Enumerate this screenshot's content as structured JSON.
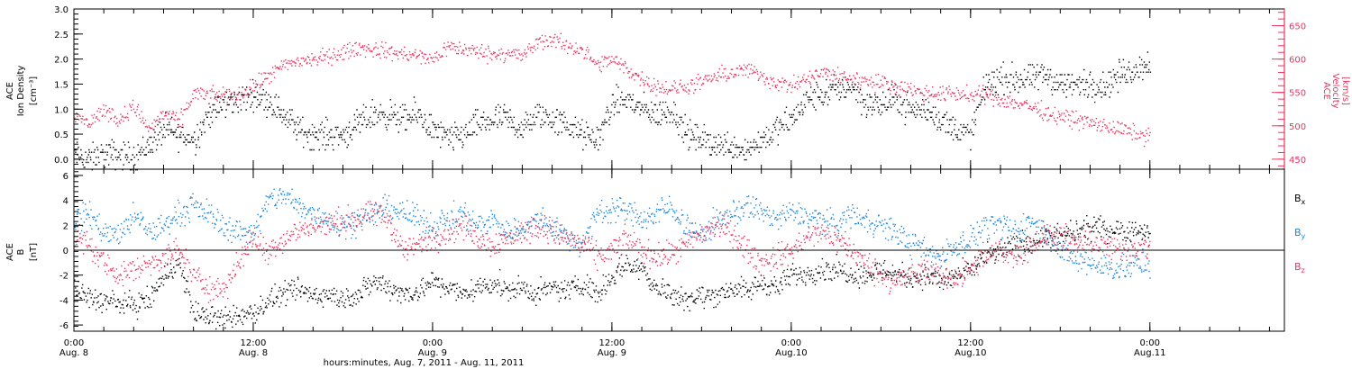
{
  "colors": {
    "axis": "#000000",
    "bx": "#000000",
    "by": "#1e86d8",
    "bz": "#e8355f",
    "density": "#000000",
    "velocity": "#e8355f"
  },
  "time_axis": {
    "title": "hours:minutes, Aug.  7, 2011 - Aug. 11, 2011",
    "range_hours": [
      0,
      81
    ],
    "ticks": [
      {
        "t": 0,
        "time": "0:00",
        "date": "Aug. 8"
      },
      {
        "t": 12,
        "time": "12:00",
        "date": "Aug. 8"
      },
      {
        "t": 24,
        "time": "0:00",
        "date": "Aug. 9"
      },
      {
        "t": 36,
        "time": "12:00",
        "date": "Aug. 9"
      },
      {
        "t": 48,
        "time": "0:00",
        "date": "Aug.10"
      },
      {
        "t": 60,
        "time": "12:00",
        "date": "Aug.10"
      },
      {
        "t": 72,
        "time": "0:00",
        "date": "Aug.11"
      }
    ]
  },
  "chart_data": [
    {
      "type": "scatter",
      "panel": "solar-wind",
      "left_axis": {
        "label_lines": [
          "ACE",
          "Ion Density"
        ],
        "unit": "[cm⁻³]",
        "ylim": [
          -0.2,
          3.0
        ],
        "ticks": [
          "0.0",
          "0.5",
          "1.0",
          "1.5",
          "2.0",
          "2.5",
          "3.0"
        ]
      },
      "right_axis": {
        "label_lines": [
          "ACE",
          "Velocity"
        ],
        "unit": "[km/s]",
        "ylim": [
          435,
          675
        ],
        "ticks": [
          "450",
          "500",
          "550",
          "600",
          "650"
        ]
      },
      "series": [
        {
          "axis": "left",
          "color": "#000000",
          "x": [
            0,
            1,
            2,
            3,
            4,
            5,
            6,
            7,
            8,
            9,
            10,
            11,
            12,
            13,
            14,
            15,
            16,
            17,
            18,
            19,
            20,
            21,
            22,
            23,
            24,
            25,
            26,
            27,
            28,
            29,
            30,
            31,
            32,
            33,
            34,
            35,
            36,
            37,
            38,
            39,
            40,
            41,
            42,
            43,
            44,
            45,
            46,
            47,
            48,
            49,
            50,
            51,
            52,
            53,
            54,
            55,
            56,
            57,
            58,
            59,
            60,
            61,
            62,
            63,
            64,
            65,
            66,
            67,
            68,
            69,
            70,
            71,
            72
          ],
          "y": [
            0.1,
            0.0,
            0.1,
            0.1,
            0.05,
            0.3,
            0.6,
            0.5,
            0.4,
            0.9,
            1.1,
            1.2,
            1.3,
            1.2,
            0.9,
            0.6,
            0.5,
            0.5,
            0.5,
            0.7,
            0.9,
            0.9,
            0.8,
            0.9,
            0.6,
            0.4,
            0.5,
            0.7,
            0.8,
            0.8,
            0.6,
            0.9,
            0.8,
            0.7,
            0.5,
            0.4,
            1.1,
            1.2,
            1.0,
            0.9,
            1.0,
            0.5,
            0.4,
            0.3,
            0.3,
            0.2,
            0.4,
            0.6,
            0.8,
            1.2,
            1.3,
            1.4,
            1.5,
            1.1,
            1.1,
            1.2,
            1.0,
            1.0,
            0.8,
            0.6,
            0.5,
            1.5,
            1.6,
            1.6,
            1.6,
            1.7,
            1.5,
            1.5,
            1.5,
            1.5,
            1.7,
            1.8,
            2.0
          ]
        },
        {
          "axis": "right",
          "color": "#e8355f",
          "x": [
            0,
            1,
            2,
            3,
            4,
            5,
            6,
            7,
            8,
            9,
            10,
            11,
            12,
            13,
            14,
            15,
            16,
            17,
            18,
            19,
            20,
            21,
            22,
            23,
            24,
            25,
            26,
            27,
            28,
            29,
            30,
            31,
            32,
            33,
            34,
            35,
            36,
            37,
            38,
            39,
            40,
            41,
            42,
            43,
            44,
            45,
            46,
            47,
            48,
            49,
            50,
            51,
            52,
            53,
            54,
            55,
            56,
            57,
            58,
            59,
            60,
            61,
            62,
            63,
            64,
            65,
            66,
            67,
            68,
            69,
            70,
            71,
            72
          ],
          "y": [
            515,
            505,
            525,
            510,
            530,
            495,
            520,
            505,
            550,
            545,
            548,
            545,
            560,
            575,
            590,
            598,
            600,
            605,
            610,
            618,
            615,
            612,
            608,
            605,
            600,
            620,
            615,
            612,
            608,
            610,
            605,
            625,
            630,
            620,
            615,
            590,
            600,
            585,
            570,
            560,
            555,
            560,
            565,
            575,
            580,
            585,
            575,
            565,
            560,
            570,
            580,
            575,
            572,
            568,
            565,
            560,
            555,
            550,
            548,
            550,
            545,
            548,
            540,
            535,
            530,
            520,
            515,
            510,
            505,
            500,
            495,
            490,
            485
          ]
        }
      ]
    },
    {
      "type": "scatter",
      "panel": "magnetic-field",
      "left_axis": {
        "label_lines": [
          "ACE",
          "B"
        ],
        "unit": "[nT]",
        "ylim": [
          -6.5,
          6.5
        ],
        "ticks": [
          "-6",
          "-4",
          "-2",
          "0",
          "2",
          "4",
          "6"
        ]
      },
      "series": [
        {
          "name": "Bx",
          "color": "#000000",
          "x": [
            0,
            1,
            2,
            3,
            4,
            5,
            6,
            7,
            8,
            9,
            10,
            11,
            12,
            13,
            14,
            15,
            16,
            17,
            18,
            19,
            20,
            21,
            22,
            23,
            24,
            25,
            26,
            27,
            28,
            29,
            30,
            31,
            32,
            33,
            34,
            35,
            36,
            37,
            38,
            39,
            40,
            41,
            42,
            43,
            44,
            45,
            46,
            47,
            48,
            49,
            50,
            51,
            52,
            53,
            54,
            55,
            56,
            57,
            58,
            59,
            60,
            61,
            62,
            63,
            64,
            65,
            66,
            67,
            68,
            69,
            70,
            71,
            72
          ],
          "y": [
            -3,
            -3.8,
            -4,
            -4.2,
            -4.3,
            -4,
            -2,
            -1,
            -5,
            -5.3,
            -5.5,
            -5.2,
            -5,
            -4,
            -3.5,
            -3.2,
            -3.5,
            -3.6,
            -3.8,
            -3.5,
            -2.5,
            -2.8,
            -3.5,
            -3.2,
            -2.5,
            -3,
            -3.5,
            -3,
            -2.5,
            -3.2,
            -3,
            -3.5,
            -3,
            -3.2,
            -2.5,
            -3.5,
            -2,
            -1,
            -1.5,
            -3,
            -3.5,
            -3.8,
            -3.7,
            -3.5,
            -3,
            -3.3,
            -2.5,
            -3,
            -2,
            -1.8,
            -1.5,
            -1.5,
            -1.8,
            -2,
            -1.5,
            -1.8,
            -2.2,
            -2,
            -2.5,
            -2,
            -1.5,
            -0.5,
            0,
            0.5,
            0.8,
            1,
            1.2,
            1.5,
            1.8,
            1.8,
            1.7,
            1.6,
            1.5
          ]
        },
        {
          "name": "By",
          "color": "#1e86d8",
          "x": [
            0,
            1,
            2,
            3,
            4,
            5,
            6,
            7,
            8,
            9,
            10,
            11,
            12,
            13,
            14,
            15,
            16,
            17,
            18,
            19,
            20,
            21,
            22,
            23,
            24,
            25,
            26,
            27,
            28,
            29,
            30,
            31,
            32,
            33,
            34,
            35,
            36,
            37,
            38,
            39,
            40,
            41,
            42,
            43,
            44,
            45,
            46,
            47,
            48,
            49,
            50,
            51,
            52,
            53,
            54,
            55,
            56,
            57,
            58,
            59,
            60,
            61,
            62,
            63,
            64,
            65,
            66,
            67,
            68,
            69,
            70,
            71,
            72
          ],
          "y": [
            2.5,
            3,
            1.5,
            1.2,
            2.8,
            1.5,
            2,
            3,
            3.5,
            3,
            2,
            1.5,
            1.5,
            4,
            4.5,
            3.5,
            3,
            2.5,
            2,
            2.5,
            3,
            3.5,
            3,
            2.5,
            2,
            2.5,
            3,
            2,
            2.5,
            1.5,
            1.8,
            2.5,
            2,
            1,
            0.5,
            3,
            3.5,
            3.2,
            2.5,
            3,
            3.5,
            2,
            1,
            2.5,
            3,
            3.5,
            3.2,
            2.5,
            3,
            2.8,
            2.5,
            2,
            3,
            2.5,
            2,
            1.5,
            0.5,
            0,
            -0.5,
            0.5,
            1,
            2,
            2,
            1.5,
            2.5,
            1.5,
            0,
            -0.8,
            -1,
            -1.2,
            -1.5,
            -1.2,
            -1
          ]
        },
        {
          "name": "Bz",
          "color": "#e8355f",
          "x": [
            0,
            1,
            2,
            3,
            4,
            5,
            6,
            7,
            8,
            9,
            10,
            11,
            12,
            13,
            14,
            15,
            16,
            17,
            18,
            19,
            20,
            21,
            22,
            23,
            24,
            25,
            26,
            27,
            28,
            29,
            30,
            31,
            32,
            33,
            34,
            35,
            36,
            37,
            38,
            39,
            40,
            41,
            42,
            43,
            44,
            45,
            46,
            47,
            48,
            49,
            50,
            51,
            52,
            53,
            54,
            55,
            56,
            57,
            58,
            59,
            60,
            61,
            62,
            63,
            64,
            65,
            66,
            67,
            68,
            69,
            70,
            71,
            72
          ],
          "y": [
            1,
            0.5,
            -1,
            -2,
            -1.5,
            -1,
            -0.5,
            0,
            -2,
            -3,
            -3,
            -1,
            1,
            0,
            1,
            1.5,
            2,
            2,
            2.5,
            2.5,
            3,
            2.5,
            0,
            0.5,
            1,
            1.5,
            2,
            1,
            0.5,
            1,
            1.5,
            2,
            1.5,
            1,
            0.5,
            -0.5,
            0,
            1,
            0,
            -0.5,
            -0.3,
            0.5,
            1.5,
            2,
            1.5,
            0,
            -1,
            -0.5,
            0,
            1,
            1.5,
            1,
            0,
            -1,
            -2,
            -2.5,
            -2,
            -1.5,
            -2,
            -2.2,
            -1.5,
            -0.5,
            0,
            -0.5,
            0.5,
            1,
            1.2,
            0.5,
            0.8,
            0.3,
            0,
            0.2,
            0.3
          ]
        }
      ]
    }
  ]
}
